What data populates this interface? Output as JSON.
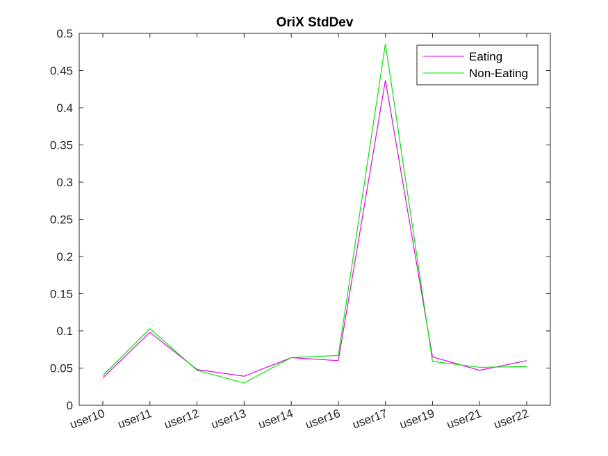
{
  "chart_data": {
    "type": "line",
    "title": "OriX StdDev",
    "xlabel": "",
    "ylabel": "",
    "categories": [
      "user10",
      "user11",
      "user12",
      "user13",
      "user14",
      "user16",
      "user17",
      "user19",
      "user21",
      "user22"
    ],
    "ylim": [
      0,
      0.5
    ],
    "yticks": [
      "0",
      "0.05",
      "0.1",
      "0.15",
      "0.2",
      "0.25",
      "0.3",
      "0.35",
      "0.4",
      "0.45",
      "0.5"
    ],
    "grid": false,
    "legend_position": "top-right",
    "series": [
      {
        "name": "Eating",
        "color": "#e600e6",
        "values": [
          0.037,
          0.098,
          0.048,
          0.039,
          0.064,
          0.06,
          0.437,
          0.065,
          0.047,
          0.06
        ]
      },
      {
        "name": "Non-Eating",
        "color": "#00e600",
        "values": [
          0.04,
          0.103,
          0.047,
          0.03,
          0.064,
          0.067,
          0.486,
          0.059,
          0.051,
          0.052
        ]
      }
    ]
  }
}
